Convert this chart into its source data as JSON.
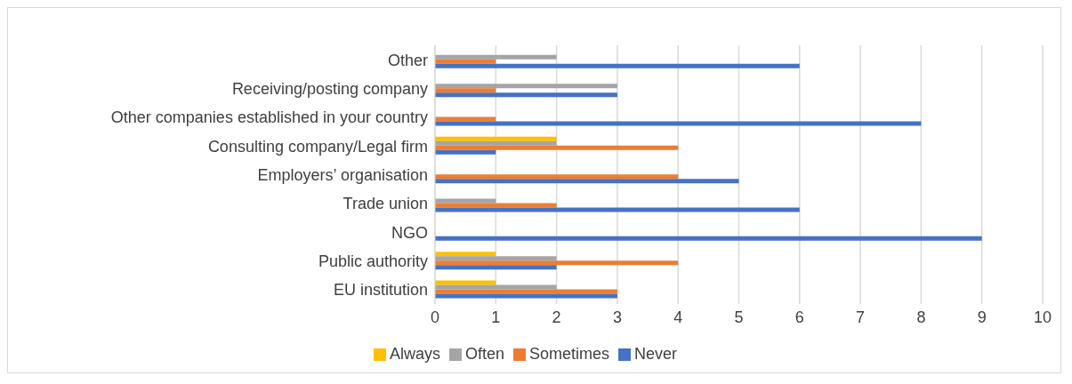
{
  "chart_data": {
    "type": "bar",
    "orientation": "horizontal",
    "categories": [
      "Other",
      "Receiving/posting company",
      "Other companies established in your country",
      "Consulting company/Legal firm",
      "Employers’ organisation",
      "Trade union",
      "NGO",
      "Public authority",
      "EU institution"
    ],
    "series": [
      {
        "name": "Always",
        "color": "#ffc000",
        "values": [
          0,
          0,
          0,
          2,
          0,
          0,
          0,
          1,
          1
        ]
      },
      {
        "name": "Often",
        "color": "#a5a5a5",
        "values": [
          2,
          3,
          0,
          2,
          0,
          1,
          0,
          2,
          2
        ]
      },
      {
        "name": "Sometimes",
        "color": "#ed7d31",
        "values": [
          1,
          1,
          1,
          4,
          4,
          2,
          0,
          4,
          3
        ]
      },
      {
        "name": "Never",
        "color": "#4472c4",
        "values": [
          6,
          3,
          8,
          1,
          5,
          6,
          9,
          2,
          3
        ]
      }
    ],
    "xlim": [
      0,
      10
    ],
    "xticks": [
      0,
      1,
      2,
      3,
      4,
      5,
      6,
      7,
      8,
      9,
      10
    ],
    "grid": "x",
    "legend": "bottom"
  }
}
